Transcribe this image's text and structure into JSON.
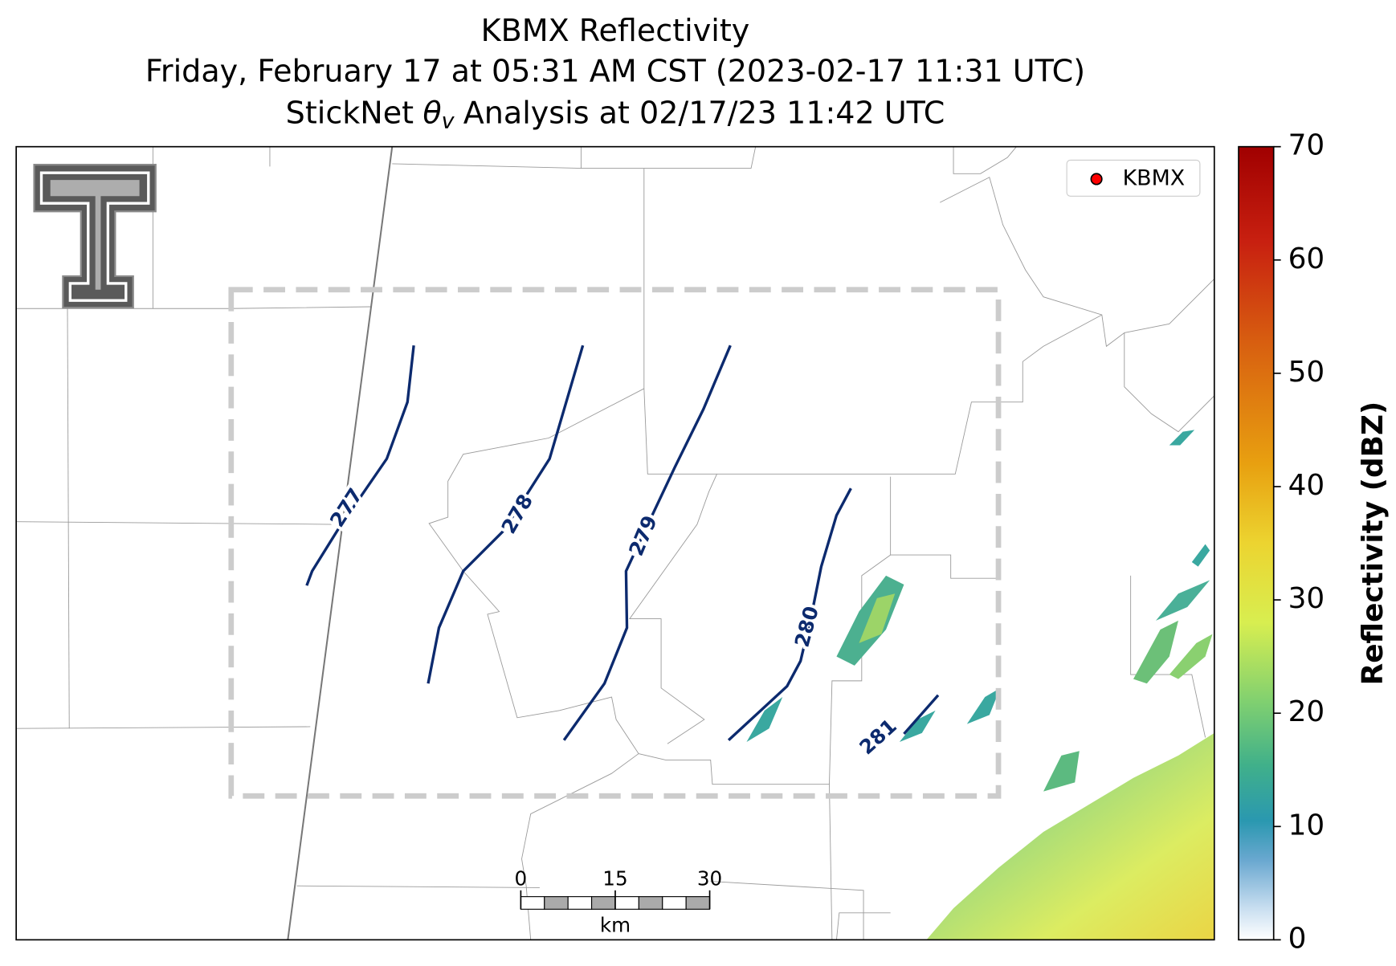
{
  "title": {
    "line1": "KBMX Reflectivity",
    "line2": "Friday, February 17 at 05:31 AM CST (2023-02-17 11:31 UTC)",
    "line3": {
      "prefix": "StickNet",
      "symbol": "θ",
      "subscript": "v",
      "suffix": "Analysis at 02/17/23 11:42 UTC"
    }
  },
  "legend": {
    "label": "KBMX",
    "color": "#ff0000"
  },
  "contours": [
    277,
    278,
    279,
    280,
    281
  ],
  "scale_bar": {
    "ticks": [
      0,
      15,
      30
    ],
    "unit": "km"
  },
  "colorbar": {
    "label": "Reflectivity (dBZ)",
    "lim": [
      0,
      70
    ],
    "ticks": [
      0,
      10,
      20,
      30,
      40,
      50,
      60,
      70
    ]
  }
}
